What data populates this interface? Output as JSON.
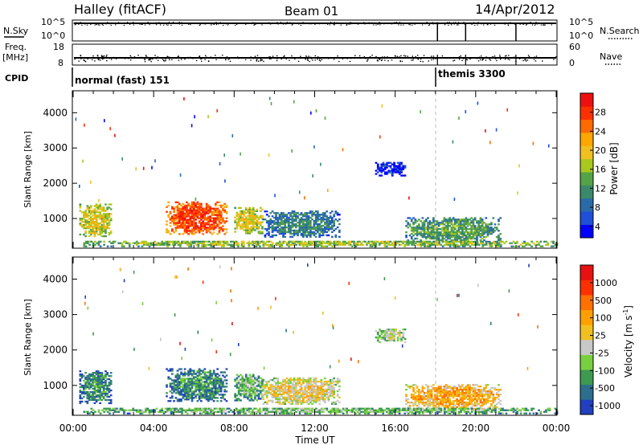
{
  "header": {
    "title": "Halley (fitACF)",
    "beam": "Beam 01",
    "date": "14/Apr/2012"
  },
  "strips": {
    "nsky_label": "N.Sky",
    "nsky_ticks": [
      "10^5",
      "10^0"
    ],
    "nsearch_label": "N.Search",
    "nsearch_ticks": [
      "10^5",
      "10^0"
    ],
    "freq_label": "Freq.",
    "freq_unit": "[MHz]",
    "freq_ticks": [
      "18",
      "8"
    ],
    "nave_label": "Nave",
    "nave_ticks": [
      "60",
      "0"
    ],
    "cpid_label": "CPID",
    "cpid_segments": [
      {
        "label": "normal (fast) 151",
        "start_hour": 0
      },
      {
        "label": "themis 3300",
        "start_hour": 18.1
      }
    ],
    "search_markers_hour": [
      18.1,
      19.5,
      22.0
    ]
  },
  "chart_data": [
    {
      "type": "heatmap",
      "name": "power",
      "ylabel": "Slant Range [km]",
      "xlabel": "Time UT",
      "xlim_hours": [
        0,
        24
      ],
      "x_ticks": [
        "00:00",
        "04:00",
        "08:00",
        "12:00",
        "16:00",
        "20:00",
        "00:00"
      ],
      "ylim_km": [
        180,
        4600
      ],
      "y_ticks": [
        "1000",
        "2000",
        "3000",
        "4000"
      ],
      "colorbar": {
        "label": "Power [dB]",
        "ticks": [
          "28",
          "24",
          "20",
          "16",
          "12",
          "8",
          "4"
        ],
        "colors": [
          "#0000ff",
          "#1e4fd8",
          "#2a6aa8",
          "#3a8a6a",
          "#55a347",
          "#a8c81e",
          "#f0c020",
          "#ffa600",
          "#ff6a00",
          "#ff3000",
          "#ee1010"
        ]
      },
      "echo_regions": [
        {
          "t0": 0.3,
          "t1": 1.9,
          "r0": 480,
          "r1": 1400,
          "level": 6
        },
        {
          "t0": 4.6,
          "t1": 7.6,
          "r0": 540,
          "r1": 1450,
          "level": 9
        },
        {
          "t0": 8.0,
          "t1": 9.4,
          "r0": 560,
          "r1": 1300,
          "level": 6
        },
        {
          "t0": 9.4,
          "t1": 13.2,
          "r0": 460,
          "r1": 1200,
          "level": 3
        },
        {
          "t0": 15.0,
          "t1": 16.5,
          "r0": 2200,
          "r1": 2600,
          "level": 1
        },
        {
          "t0": 16.5,
          "t1": 21.2,
          "r0": 320,
          "r1": 1000,
          "level": 4
        },
        {
          "t0": 0.5,
          "t1": 24.0,
          "r0": 190,
          "r1": 360,
          "level": 5
        }
      ]
    },
    {
      "type": "heatmap",
      "name": "velocity",
      "ylabel": "Slant Range [km]",
      "xlabel": "Time UT",
      "xlim_hours": [
        0,
        24
      ],
      "x_ticks": [
        "00:00",
        "04:00",
        "08:00",
        "12:00",
        "16:00",
        "20:00",
        "00:00"
      ],
      "ylim_km": [
        180,
        4600
      ],
      "y_ticks": [
        "1000",
        "2000",
        "3000",
        "4000"
      ],
      "colorbar": {
        "label": "Velocity [m s^-1]",
        "ticks": [
          "1000",
          "500",
          "100",
          "25",
          "-25",
          "-100",
          "-500",
          "-1000"
        ],
        "colors": [
          "#2040c0",
          "#2c6e8e",
          "#3e9a50",
          "#78d040",
          "#c8c8c8",
          "#f0c020",
          "#ffa000",
          "#ff7000",
          "#ff3000",
          "#e81010"
        ]
      },
      "echo_regions": [
        {
          "t0": 0.3,
          "t1": 1.9,
          "r0": 480,
          "r1": 1400,
          "level": 2
        },
        {
          "t0": 4.6,
          "t1": 7.6,
          "r0": 540,
          "r1": 1450,
          "level": 2
        },
        {
          "t0": 8.0,
          "t1": 9.4,
          "r0": 560,
          "r1": 1300,
          "level": 3
        },
        {
          "t0": 9.4,
          "t1": 13.2,
          "r0": 460,
          "r1": 1200,
          "level": 5
        },
        {
          "t0": 15.0,
          "t1": 16.5,
          "r0": 2200,
          "r1": 2600,
          "level": 4
        },
        {
          "t0": 16.5,
          "t1": 21.2,
          "r0": 320,
          "r1": 1000,
          "level": 6
        },
        {
          "t0": 0.5,
          "t1": 24.0,
          "r0": 190,
          "r1": 360,
          "level": 3
        }
      ]
    }
  ]
}
